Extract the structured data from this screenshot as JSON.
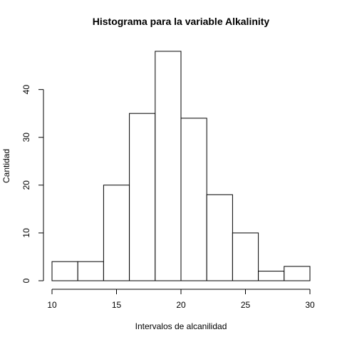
{
  "chart_data": {
    "type": "bar",
    "title": "Histograma para la variable Alkalinity",
    "xlabel": "Intervalos de alcanilidad",
    "ylabel": "Cantidad",
    "bins": [
      {
        "start": 10,
        "end": 12,
        "count": 4
      },
      {
        "start": 12,
        "end": 14,
        "count": 4
      },
      {
        "start": 14,
        "end": 16,
        "count": 20
      },
      {
        "start": 16,
        "end": 18,
        "count": 35
      },
      {
        "start": 18,
        "end": 20,
        "count": 48
      },
      {
        "start": 20,
        "end": 22,
        "count": 34
      },
      {
        "start": 22,
        "end": 24,
        "count": 18
      },
      {
        "start": 24,
        "end": 26,
        "count": 10
      },
      {
        "start": 26,
        "end": 28,
        "count": 2
      },
      {
        "start": 28,
        "end": 30,
        "count": 3
      }
    ],
    "xlim": [
      10,
      30
    ],
    "ylim": [
      0,
      48
    ],
    "xticks": [
      10,
      15,
      20,
      25,
      30
    ],
    "yticks": [
      0,
      10,
      20,
      30,
      40
    ],
    "grid": false,
    "bar_fill": "#ffffff",
    "bar_stroke": "#000000"
  }
}
